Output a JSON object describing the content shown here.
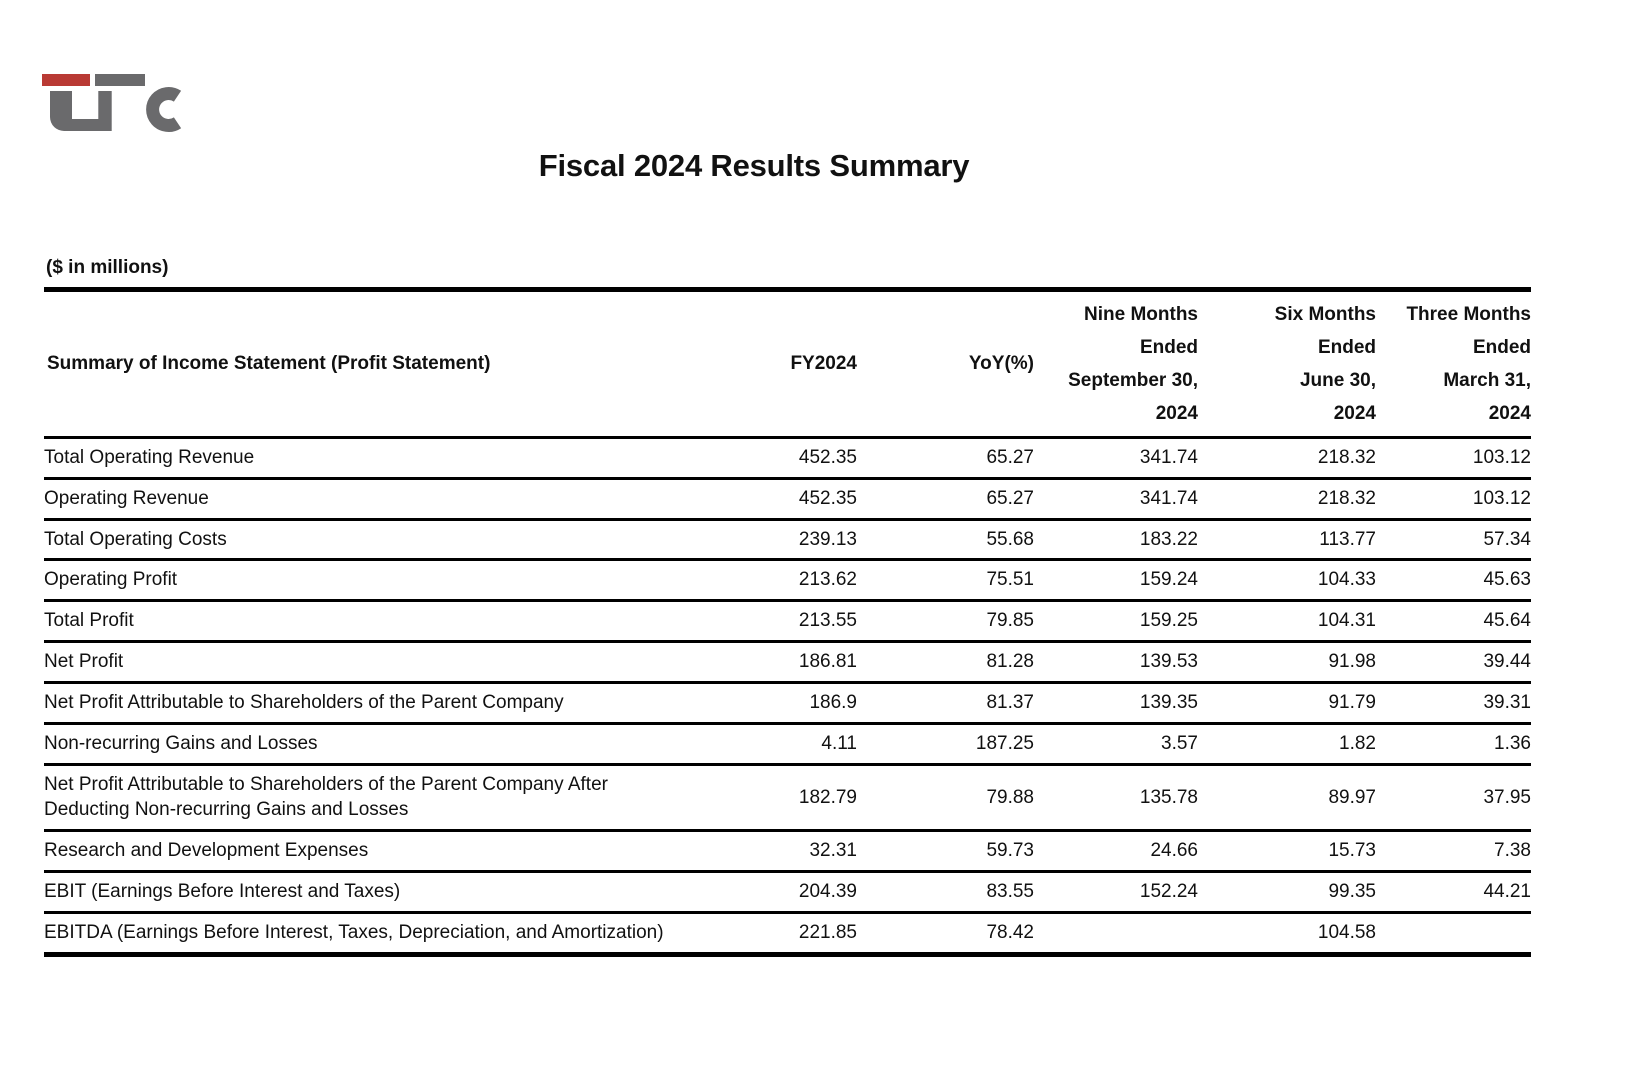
{
  "logo": {
    "name": "LFC",
    "red": "#b93a34",
    "gray": "#6a6a6c"
  },
  "title": "Fiscal 2024 Results Summary",
  "units_note": "($ in millions)",
  "table": {
    "label_header": "Summary of Income Statement (Profit Statement)",
    "columns": [
      "FY2024",
      "YoY(%)",
      "Nine Months\nEnded\nSeptember 30,\n2024",
      "Six Months\nEnded\nJune 30,\n2024",
      "Three Months\nEnded\nMarch 31,\n2024"
    ],
    "rows": [
      {
        "label": "Total Operating Revenue",
        "values": [
          "452.35",
          "65.27",
          "341.74",
          "218.32",
          "103.12"
        ]
      },
      {
        "label": "Operating Revenue",
        "values": [
          "452.35",
          "65.27",
          "341.74",
          "218.32",
          "103.12"
        ]
      },
      {
        "label": "Total Operating Costs",
        "values": [
          "239.13",
          "55.68",
          "183.22",
          "113.77",
          "57.34"
        ]
      },
      {
        "label": "Operating Profit",
        "values": [
          "213.62",
          "75.51",
          "159.24",
          "104.33",
          "45.63"
        ]
      },
      {
        "label": "Total Profit",
        "values": [
          "213.55",
          "79.85",
          "159.25",
          "104.31",
          "45.64"
        ]
      },
      {
        "label": "Net Profit",
        "values": [
          "186.81",
          "81.28",
          "139.53",
          "91.98",
          "39.44"
        ]
      },
      {
        "label": "Net Profit Attributable to Shareholders of the Parent Company",
        "values": [
          "186.9",
          "81.37",
          "139.35",
          "91.79",
          "39.31"
        ]
      },
      {
        "label": "Non-recurring Gains and Losses",
        "values": [
          "4.11",
          "187.25",
          "3.57",
          "1.82",
          "1.36"
        ]
      },
      {
        "label": "Net Profit Attributable to Shareholders of the Parent Company After Deducting Non-recurring Gains and Losses",
        "values": [
          "182.79",
          "79.88",
          "135.78",
          "89.97",
          "37.95"
        ]
      },
      {
        "label": "Research and Development Expenses",
        "values": [
          "32.31",
          "59.73",
          "24.66",
          "15.73",
          "7.38"
        ]
      },
      {
        "label": "EBIT (Earnings Before Interest and Taxes)",
        "values": [
          "204.39",
          "83.55",
          "152.24",
          "99.35",
          "44.21"
        ]
      },
      {
        "label": "EBITDA (Earnings Before Interest, Taxes, Depreciation, and Amortization)",
        "values": [
          "221.85",
          "78.42",
          "",
          "104.58",
          ""
        ]
      }
    ]
  }
}
